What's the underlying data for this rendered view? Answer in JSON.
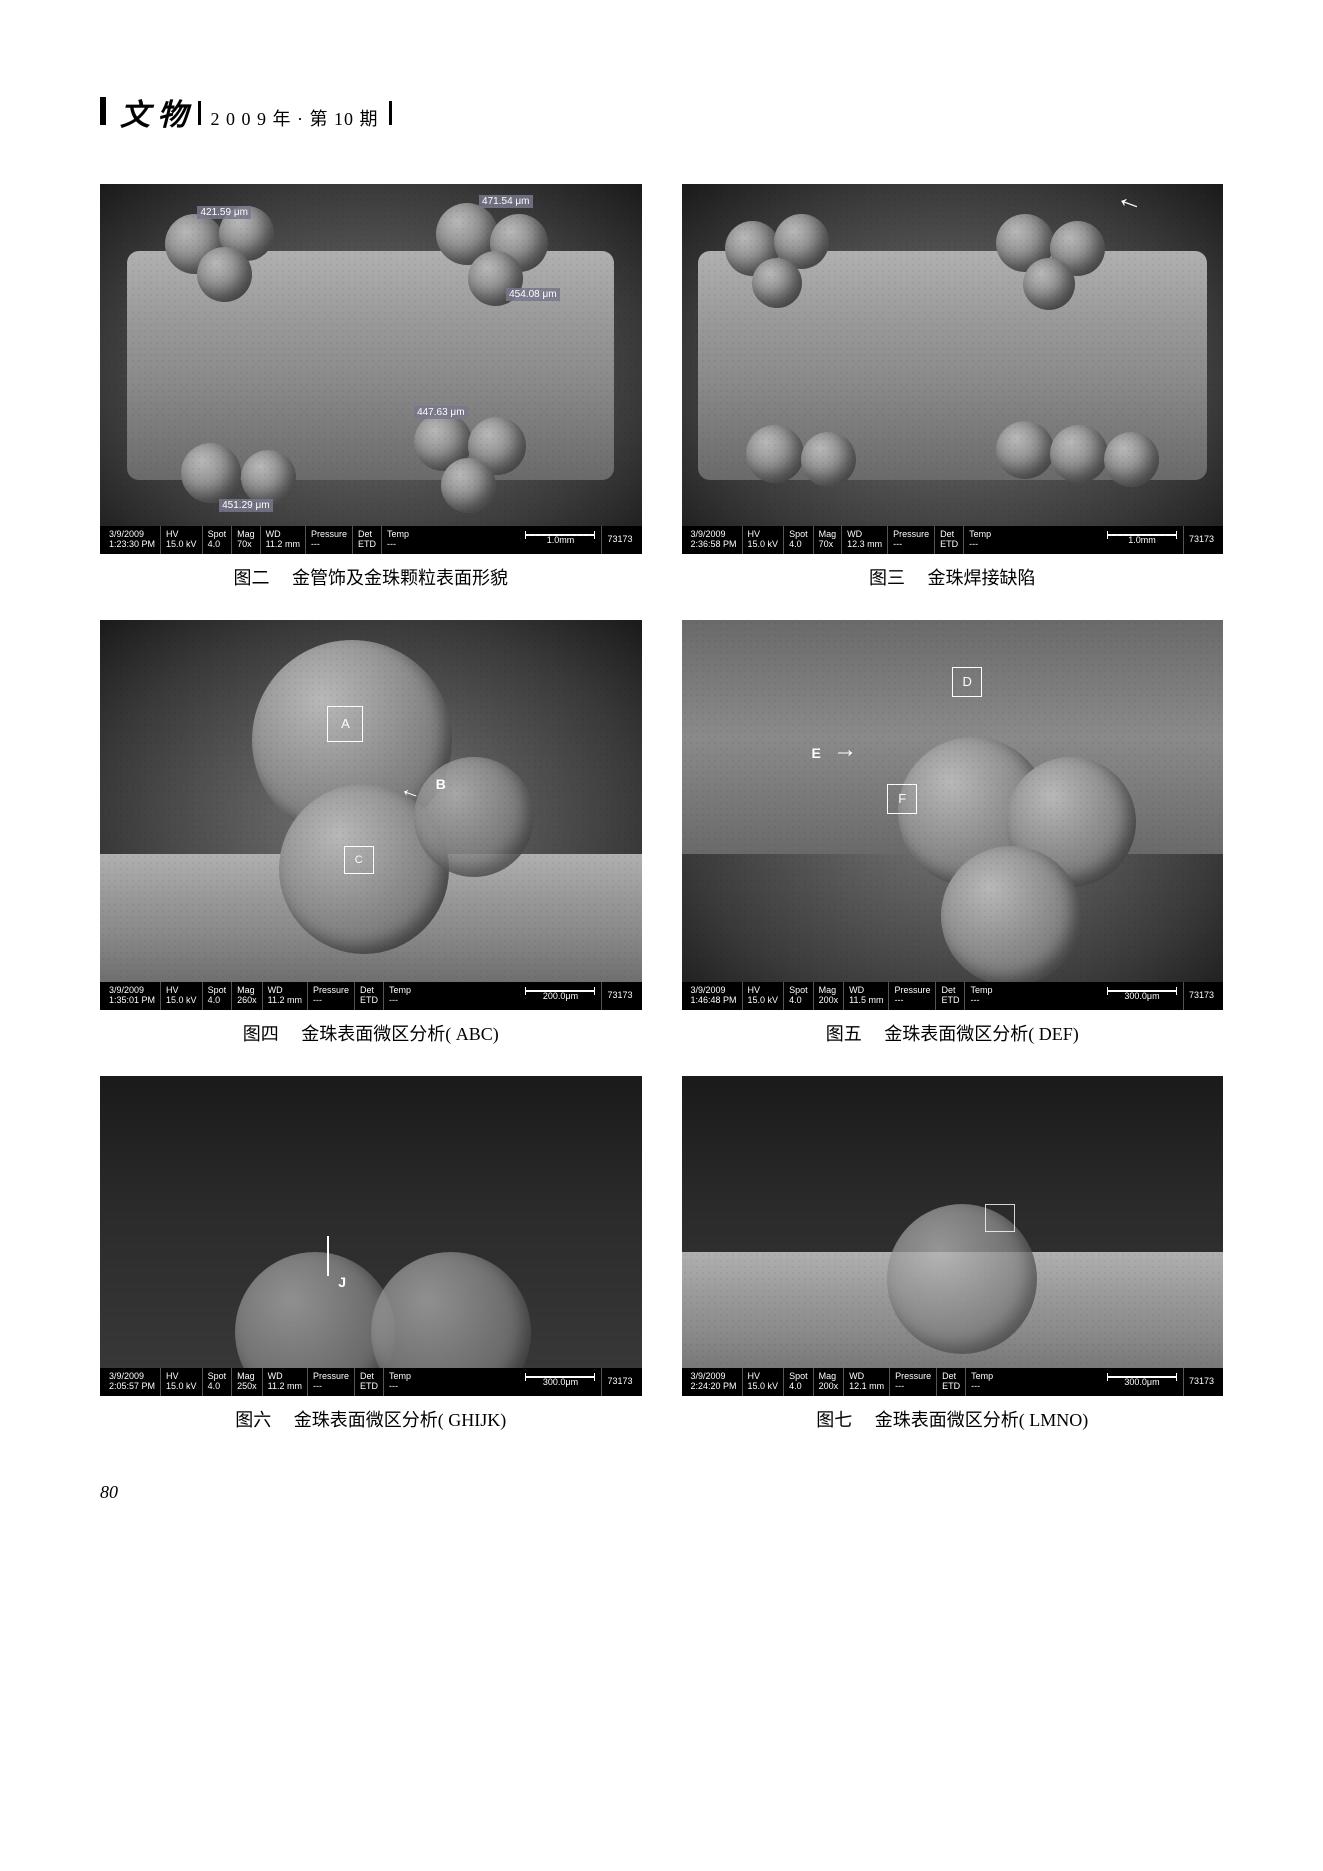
{
  "header": {
    "journal_name": "文 物",
    "issue_info": "2 0 0 9 年 · 第 10 期"
  },
  "figures": {
    "fig2": {
      "num": "图二",
      "caption": "金管饰及金珠颗粒表面形貌",
      "measurements": {
        "m1": "421.59 μm",
        "m2": "471.54 μm",
        "m3": "454.08 μm",
        "m4": "447.63 μm",
        "m5": "451.29 μm"
      },
      "sem": {
        "datetime": "3/9/2009\n1:23:30 PM",
        "hv": "HV\n15.0 kV",
        "spot": "Spot\n4.0",
        "mag": "Mag\n70x",
        "wd": "WD\n11.2 mm",
        "pressure": "Pressure\n---",
        "det": "Det\nETD",
        "temp": "Temp\n---",
        "scale": "1.0mm",
        "id": "73173"
      }
    },
    "fig3": {
      "num": "图三",
      "caption": "金珠焊接缺陷",
      "sem": {
        "datetime": "3/9/2009\n2:36:58 PM",
        "hv": "HV\n15.0 kV",
        "spot": "Spot\n4.0",
        "mag": "Mag\n70x",
        "wd": "WD\n12.3 mm",
        "pressure": "Pressure\n---",
        "det": "Det\nETD",
        "temp": "Temp\n---",
        "scale": "1.0mm",
        "id": "73173"
      }
    },
    "fig4": {
      "num": "图四",
      "caption": "金珠表面微区分析( ABC)",
      "roi": {
        "a": "A",
        "b": "B",
        "c": "C"
      },
      "sem": {
        "datetime": "3/9/2009\n1:35:01 PM",
        "hv": "HV\n15.0 kV",
        "spot": "Spot\n4.0",
        "mag": "Mag\n260x",
        "wd": "WD\n11.2 mm",
        "pressure": "Pressure\n---",
        "det": "Det\nETD",
        "temp": "Temp\n---",
        "scale": "200.0μm",
        "id": "73173"
      }
    },
    "fig5": {
      "num": "图五",
      "caption": "金珠表面微区分析( DEF)",
      "roi": {
        "d": "D",
        "e": "E",
        "f": "F"
      },
      "sem": {
        "datetime": "3/9/2009\n1:46:48 PM",
        "hv": "HV\n15.0 kV",
        "spot": "Spot\n4.0",
        "mag": "Mag\n200x",
        "wd": "WD\n11.5 mm",
        "pressure": "Pressure\n---",
        "det": "Det\nETD",
        "temp": "Temp\n---",
        "scale": "300.0μm",
        "id": "73173"
      }
    },
    "fig6": {
      "num": "图六",
      "caption": "金珠表面微区分析( GHIJK)",
      "roi": {
        "j": "J"
      },
      "sem": {
        "datetime": "3/9/2009\n2:05:57 PM",
        "hv": "HV\n15.0 kV",
        "spot": "Spot\n4.0",
        "mag": "Mag\n250x",
        "wd": "WD\n11.2 mm",
        "pressure": "Pressure\n---",
        "det": "Det\nETD",
        "temp": "Temp\n---",
        "scale": "300.0μm",
        "id": "73173"
      }
    },
    "fig7": {
      "num": "图七",
      "caption": "金珠表面微区分析( LMNO)",
      "sem": {
        "datetime": "3/9/2009\n2:24:20 PM",
        "hv": "HV\n15.0 kV",
        "spot": "Spot\n4.0",
        "mag": "Mag\n200x",
        "wd": "WD\n12.1 mm",
        "pressure": "Pressure\n---",
        "det": "Det\nETD",
        "temp": "Temp\n---",
        "scale": "300.0μm",
        "id": "73173"
      }
    }
  },
  "page_number": "80"
}
